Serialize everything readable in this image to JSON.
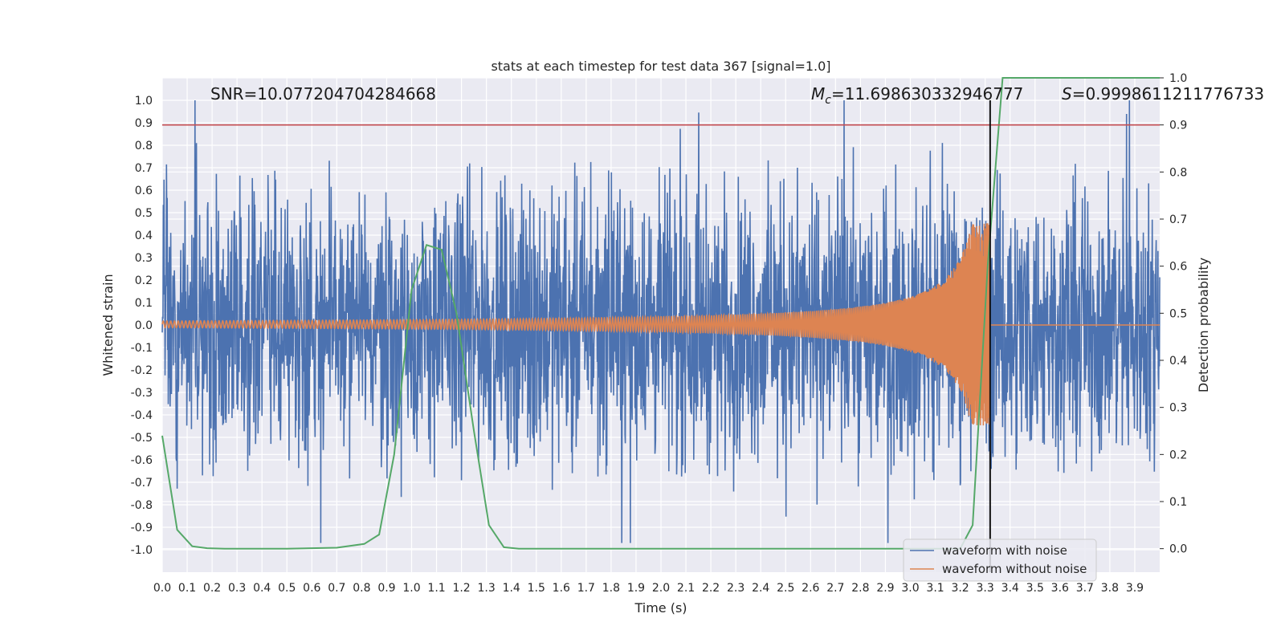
{
  "chart_data": {
    "type": "line",
    "title": "stats at each timestep for test data 367 [signal=1.0]",
    "xlabel": "Time (s)",
    "ylabel": "Whitened strain",
    "y2label": "Detection probability",
    "xlim": [
      0.0,
      4.0
    ],
    "ylim": [
      -1.1,
      1.1
    ],
    "y2lim": [
      -0.05,
      1.0
    ],
    "xticks": [
      "0.0",
      "0.1",
      "0.2",
      "0.3",
      "0.4",
      "0.5",
      "0.6",
      "0.7",
      "0.8",
      "0.9",
      "1.0",
      "1.1",
      "1.2",
      "1.3",
      "1.4",
      "1.5",
      "1.6",
      "1.7",
      "1.8",
      "1.9",
      "2.0",
      "2.1",
      "2.2",
      "2.3",
      "2.4",
      "2.5",
      "2.6",
      "2.7",
      "2.8",
      "2.9",
      "3.0",
      "3.1",
      "3.2",
      "3.3",
      "3.4",
      "3.5",
      "3.6",
      "3.7",
      "3.8",
      "3.9"
    ],
    "yticks": [
      "1.0",
      "0.9",
      "0.8",
      "0.7",
      "0.6",
      "0.5",
      "0.4",
      "0.3",
      "0.2",
      "0.1",
      "0.0",
      "-0.1",
      "-0.2",
      "-0.3",
      "-0.4",
      "-0.5",
      "-0.6",
      "-0.7",
      "-0.8",
      "-0.9",
      "-1.0"
    ],
    "y2ticks": [
      "1.0",
      "0.9",
      "0.8",
      "0.7",
      "0.6",
      "0.5",
      "0.4",
      "0.3",
      "0.2",
      "0.1",
      "0.0"
    ],
    "legend": {
      "placement": "bottom-right",
      "entries": [
        "waveform with noise",
        "waveform without noise"
      ]
    },
    "annotations": {
      "snr": "SNR=10.077204704284668",
      "mc_symbol": "M",
      "mc_sub": "c",
      "mc_value": "=11.698630332946777",
      "s_symbol": "S",
      "s_value": "=0.9998611211776733"
    },
    "threshold": {
      "axis": "y2",
      "value": 0.9,
      "color": "#c44e52"
    },
    "merger_time": 3.32,
    "series": [
      {
        "name": "waveform with noise",
        "color": "#4c72b0",
        "kind": "noise",
        "amplitude_typical": 0.4,
        "peak_max": 1.0,
        "peak_min": -0.97
      },
      {
        "name": "waveform without noise",
        "color": "#dd8452",
        "kind": "chirp",
        "amplitude_start": 0.015,
        "amplitude_peak": 0.45,
        "merger": 3.32
      },
      {
        "name": "detection probability",
        "color": "#55a868",
        "axis": "y2",
        "x": [
          0.0,
          0.06,
          0.12,
          0.18,
          0.25,
          0.5,
          0.7,
          0.81,
          0.87,
          0.93,
          1.0,
          1.06,
          1.12,
          1.18,
          1.25,
          1.31,
          1.37,
          1.43,
          1.5,
          3.2,
          3.25,
          3.31,
          3.37,
          4.0
        ],
        "values": [
          0.24,
          0.04,
          0.005,
          0.001,
          0.0,
          0.0,
          0.002,
          0.01,
          0.03,
          0.2,
          0.55,
          0.645,
          0.635,
          0.5,
          0.25,
          0.05,
          0.003,
          0.0,
          0.0,
          0.0,
          0.05,
          0.6,
          1.0,
          1.0
        ]
      }
    ]
  }
}
